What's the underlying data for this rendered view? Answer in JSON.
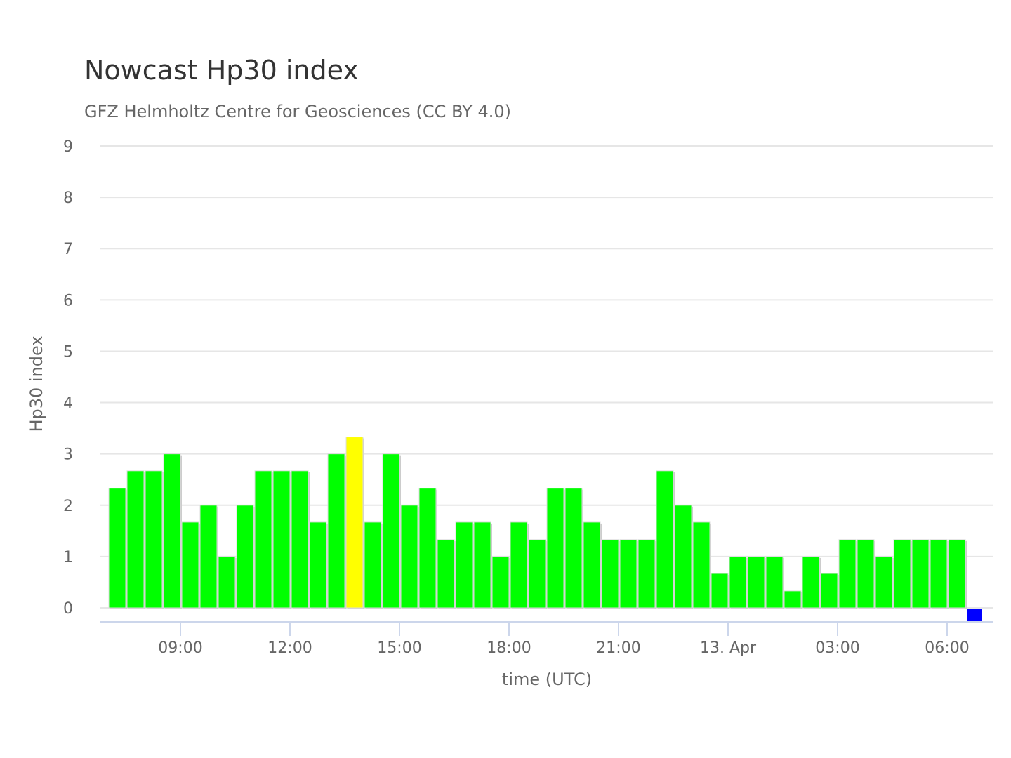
{
  "chart_data": {
    "type": "bar",
    "title": "Nowcast Hp30 index",
    "subtitle": "GFZ Helmholtz Centre for Geosciences (CC BY 4.0)",
    "xlabel": "time (UTC)",
    "ylabel": "Hp30 index",
    "ylim": [
      0,
      9
    ],
    "yticks": [
      "0",
      "1",
      "2",
      "3",
      "4",
      "5",
      "6",
      "7",
      "8",
      "9"
    ],
    "xticks": [
      {
        "label": "09:00",
        "hours": 0
      },
      {
        "label": "12:00",
        "hours": 3
      },
      {
        "label": "15:00",
        "hours": 6
      },
      {
        "label": "18:00",
        "hours": 9
      },
      {
        "label": "21:00",
        "hours": 12
      },
      {
        "label": "13. Apr",
        "hours": 15
      },
      {
        "label": "03:00",
        "hours": 18
      },
      {
        "label": "06:00",
        "hours": 21
      }
    ],
    "x_start_hours_relative_to_0900": -2,
    "bar_interval_hours": 0.5,
    "values": [
      2.33,
      2.67,
      2.67,
      3.0,
      1.67,
      2.0,
      1.0,
      2.0,
      2.67,
      2.67,
      2.67,
      1.67,
      3.0,
      3.33,
      1.67,
      3.0,
      2.0,
      2.33,
      1.33,
      1.67,
      1.67,
      1.0,
      1.67,
      1.33,
      2.33,
      2.33,
      1.67,
      1.33,
      1.33,
      1.33,
      2.67,
      2.0,
      1.67,
      0.67,
      1.0,
      1.0,
      1.0,
      0.33,
      1.0,
      0.67,
      1.33,
      1.33,
      1.0,
      1.33,
      1.33,
      1.33,
      1.33,
      0
    ],
    "colors": [
      "#00ff00",
      "#00ff00",
      "#00ff00",
      "#00ff00",
      "#00ff00",
      "#00ff00",
      "#00ff00",
      "#00ff00",
      "#00ff00",
      "#00ff00",
      "#00ff00",
      "#00ff00",
      "#00ff00",
      "#ffff00",
      "#00ff00",
      "#00ff00",
      "#00ff00",
      "#00ff00",
      "#00ff00",
      "#00ff00",
      "#00ff00",
      "#00ff00",
      "#00ff00",
      "#00ff00",
      "#00ff00",
      "#00ff00",
      "#00ff00",
      "#00ff00",
      "#00ff00",
      "#00ff00",
      "#00ff00",
      "#00ff00",
      "#00ff00",
      "#00ff00",
      "#00ff00",
      "#00ff00",
      "#00ff00",
      "#00ff00",
      "#00ff00",
      "#00ff00",
      "#00ff00",
      "#00ff00",
      "#00ff00",
      "#00ff00",
      "#00ff00",
      "#00ff00",
      "#00ff00",
      "#0000ff"
    ],
    "grid": true,
    "legend": "none"
  }
}
